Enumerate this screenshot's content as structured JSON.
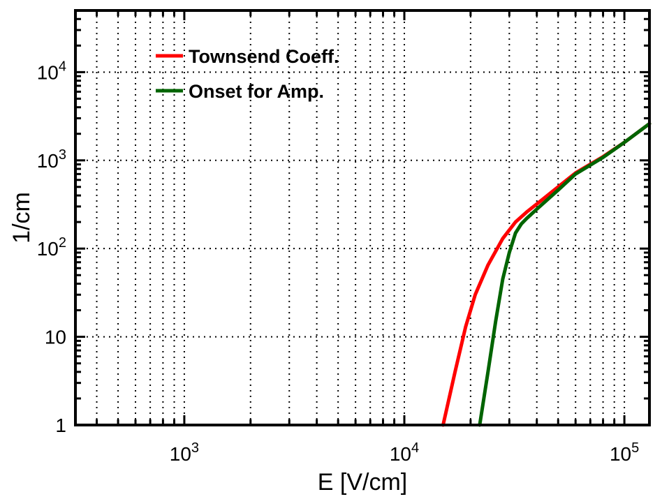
{
  "chart_data": {
    "type": "line",
    "title": "",
    "xlabel": "E [V/cm]",
    "ylabel": "1/cm",
    "xscale": "log",
    "yscale": "log",
    "xlim": [
      320,
      130000
    ],
    "ylim": [
      1,
      50000
    ],
    "grid": true,
    "legend_position": "top-left",
    "x_ticks": [
      {
        "value": 1000,
        "base": "10",
        "exp": "3"
      },
      {
        "value": 10000,
        "base": "10",
        "exp": "4"
      },
      {
        "value": 100000,
        "base": "10",
        "exp": "5"
      }
    ],
    "y_ticks": [
      {
        "value": 1,
        "base": "1",
        "exp": ""
      },
      {
        "value": 10,
        "base": "10",
        "exp": ""
      },
      {
        "value": 100,
        "base": "10",
        "exp": "2"
      },
      {
        "value": 1000,
        "base": "10",
        "exp": "3"
      },
      {
        "value": 10000,
        "base": "10",
        "exp": "4"
      }
    ],
    "series": [
      {
        "name": "Townsend Coeff.",
        "color": "#ff0000",
        "x": [
          15000,
          17000,
          19000,
          21000,
          24000,
          28000,
          32000,
          36000,
          40000,
          50000,
          60000,
          80000,
          100000,
          130000
        ],
        "y": [
          1,
          4,
          13,
          30,
          65,
          130,
          200,
          260,
          320,
          500,
          720,
          1100,
          1600,
          2600
        ]
      },
      {
        "name": "Onset for Amp.",
        "color": "#006400",
        "x": [
          22000,
          24000,
          26000,
          28000,
          30000,
          32000,
          34000,
          36000,
          40000,
          50000,
          60000,
          80000,
          100000,
          130000
        ],
        "y": [
          1,
          4,
          15,
          45,
          90,
          150,
          190,
          220,
          280,
          460,
          700,
          1080,
          1600,
          2600
        ]
      }
    ]
  }
}
